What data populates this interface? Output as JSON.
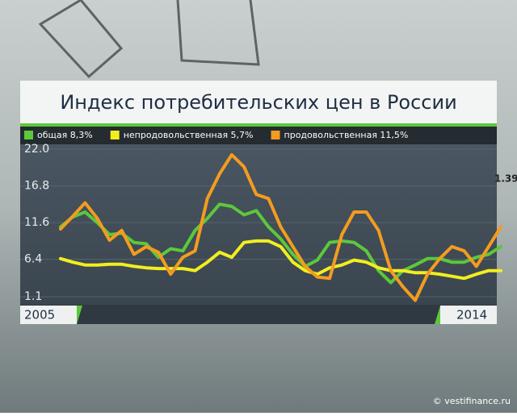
{
  "chart_data": {
    "type": "line",
    "title": "Индекс потребительских цен в России",
    "categories": [
      "2005",
      null,
      null,
      null,
      null,
      null,
      null,
      null,
      null,
      null,
      null,
      null,
      null,
      null,
      null,
      null,
      null,
      null,
      null,
      null,
      null,
      null,
      null,
      null,
      null,
      null,
      null,
      null,
      null,
      null,
      null,
      null,
      null,
      null,
      null,
      null,
      "2014"
    ],
    "series": [
      {
        "name": "общая 8,3%",
        "color": "#5cc83a",
        "values": [
          11.0,
          12.4,
          13.1,
          11.6,
          9.9,
          10.1,
          8.8,
          8.6,
          6.7,
          7.9,
          7.6,
          10.5,
          12.2,
          14.2,
          13.9,
          12.7,
          13.3,
          11.0,
          9.3,
          7.1,
          5.4,
          6.3,
          8.8,
          9.0,
          8.8,
          7.6,
          4.8,
          3.1,
          4.8,
          5.6,
          6.5,
          6.5,
          6.0,
          6.0,
          6.7,
          7.1,
          8.2
        ]
      },
      {
        "name": "непродовольственная 5,7%",
        "color": "#f2ee1e",
        "values": [
          6.5,
          6.0,
          5.6,
          5.6,
          5.7,
          5.7,
          5.4,
          5.2,
          5.1,
          5.1,
          5.1,
          4.8,
          6.0,
          7.4,
          6.7,
          8.8,
          9.0,
          9.0,
          8.2,
          6.0,
          4.8,
          4.3,
          5.2,
          5.6,
          6.3,
          6.0,
          5.2,
          4.8,
          4.8,
          4.5,
          4.5,
          4.3,
          4.0,
          3.7,
          4.3,
          4.8,
          4.8
        ]
      },
      {
        "name": "продовольственная 11,5%",
        "color": "#f39c1f",
        "values": [
          10.7,
          12.5,
          14.4,
          12.2,
          9.1,
          10.5,
          7.1,
          8.2,
          7.4,
          4.3,
          6.7,
          7.6,
          15.0,
          18.5,
          21.2,
          19.5,
          15.6,
          15.0,
          11.0,
          8.2,
          5.4,
          3.9,
          3.7,
          9.9,
          13.1,
          13.1,
          10.5,
          4.8,
          2.5,
          0.6,
          4.3,
          6.5,
          8.2,
          7.6,
          5.4,
          8.2,
          11.0
        ]
      }
    ],
    "ylim": [
      0.2,
      22.8
    ],
    "yticks": [
      {
        "value": 22,
        "label": "22.0"
      },
      16.8,
      11.6,
      6.4,
      1.1
    ],
    "grid": true,
    "annotation": "1.39",
    "source": "© vestifinance.ru"
  }
}
